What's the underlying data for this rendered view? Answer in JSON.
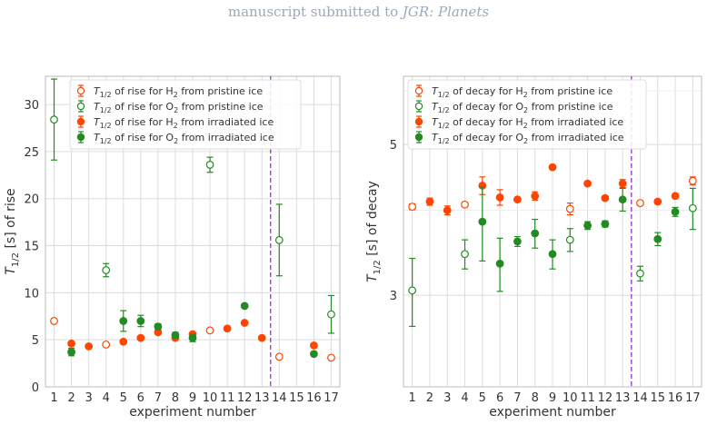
{
  "header": {
    "prefix": "manuscript submitted to",
    "journal": "JGR: Planets"
  },
  "colors": {
    "h2": "#ff4500",
    "o2": "#228b22",
    "separator": "#9932cc",
    "grid": "#dcdcdc"
  },
  "chart_data": [
    {
      "type": "scatter",
      "xlabel": "experiment number",
      "ylabel": "T_{1/2} [s] of rise",
      "ylabel_parts": {
        "prefix": "T",
        "sub": "1/2",
        "suffix": " [s] of rise"
      },
      "x_ticks": [
        1,
        2,
        3,
        4,
        5,
        6,
        7,
        8,
        9,
        10,
        11,
        12,
        13,
        14,
        15,
        16,
        17
      ],
      "xlim": [
        0.5,
        17.5
      ],
      "y_ticks": [
        0,
        5,
        10,
        15,
        20,
        25,
        30
      ],
      "ylim": [
        0,
        33
      ],
      "y_scale": "linear",
      "grid": true,
      "legend_position": "top-right",
      "vline_x": 13.5,
      "series": [
        {
          "name": "T1/2 of rise for H2 from pristine ice",
          "legend": {
            "t": "T",
            "sub1": "1/2",
            "mid": " of rise for H",
            "sub2": "2",
            "end": " from pristine ice"
          },
          "color": "#ff4500",
          "filled": false,
          "points": [
            {
              "x": 1,
              "y": 7.0,
              "err": 0.1
            },
            {
              "x": 4,
              "y": 4.5,
              "err": 0.1
            },
            {
              "x": 10,
              "y": 6.0,
              "err": 0.1
            },
            {
              "x": 14,
              "y": 3.2,
              "err": 0.1
            },
            {
              "x": 17,
              "y": 3.1,
              "err": 0.1
            }
          ]
        },
        {
          "name": "T1/2 of rise for O2 from pristine ice",
          "legend": {
            "t": "T",
            "sub1": "1/2",
            "mid": " of rise for O",
            "sub2": "2",
            "end": " from pristine ice"
          },
          "color": "#228b22",
          "filled": false,
          "points": [
            {
              "x": 1,
              "y": 28.4,
              "err": 4.3
            },
            {
              "x": 4,
              "y": 12.4,
              "err": 0.7
            },
            {
              "x": 10,
              "y": 23.6,
              "err": 0.8
            },
            {
              "x": 14,
              "y": 15.6,
              "err": 3.8
            },
            {
              "x": 17,
              "y": 7.7,
              "err": 2.0
            }
          ]
        },
        {
          "name": "T1/2 of rise for H2 from irradiated ice",
          "legend": {
            "t": "T",
            "sub1": "1/2",
            "mid": " of rise for H",
            "sub2": "2",
            "end": " from irradiated ice"
          },
          "color": "#ff4500",
          "filled": true,
          "points": [
            {
              "x": 2,
              "y": 4.6,
              "err": 0.1
            },
            {
              "x": 3,
              "y": 4.3,
              "err": 0.1
            },
            {
              "x": 5,
              "y": 4.8,
              "err": 0.1
            },
            {
              "x": 6,
              "y": 5.2,
              "err": 0.1
            },
            {
              "x": 7,
              "y": 5.8,
              "err": 0.1
            },
            {
              "x": 8,
              "y": 5.2,
              "err": 0.1
            },
            {
              "x": 9,
              "y": 5.6,
              "err": 0.1
            },
            {
              "x": 11,
              "y": 6.2,
              "err": 0.1
            },
            {
              "x": 12,
              "y": 6.8,
              "err": 0.1
            },
            {
              "x": 13,
              "y": 5.2,
              "err": 0.1
            },
            {
              "x": 16,
              "y": 4.4,
              "err": 0.1
            }
          ]
        },
        {
          "name": "T1/2 of rise for O2 from irradiated ice",
          "legend": {
            "t": "T",
            "sub1": "1/2",
            "mid": " of rise for O",
            "sub2": "2",
            "end": " from irradiated ice"
          },
          "color": "#228b22",
          "filled": true,
          "points": [
            {
              "x": 2,
              "y": 3.7,
              "err": 0.4
            },
            {
              "x": 5,
              "y": 7.0,
              "err": 1.1
            },
            {
              "x": 6,
              "y": 7.0,
              "err": 0.6
            },
            {
              "x": 7,
              "y": 6.4,
              "err": 0.3
            },
            {
              "x": 8,
              "y": 5.5,
              "err": 0.3
            },
            {
              "x": 9,
              "y": 5.2,
              "err": 0.4
            },
            {
              "x": 12,
              "y": 8.6,
              "err": 0.2
            },
            {
              "x": 16,
              "y": 3.5,
              "err": 0.2
            }
          ]
        }
      ]
    },
    {
      "type": "scatter",
      "xlabel": "experiment number",
      "ylabel": "T_{1/2} [s] of decay",
      "ylabel_parts": {
        "prefix": "T",
        "sub": "1/2",
        "suffix": " [s] of decay"
      },
      "x_ticks": [
        1,
        2,
        3,
        4,
        5,
        6,
        7,
        8,
        9,
        10,
        11,
        12,
        13,
        14,
        15,
        16,
        17
      ],
      "xlim": [
        0.5,
        17.5
      ],
      "y_ticks": [
        3,
        5
      ],
      "ylim": [
        2.2,
        6.3
      ],
      "y_scale": "log",
      "grid": true,
      "legend_position": "top-left",
      "vline_x": 13.5,
      "series": [
        {
          "name": "T1/2 of decay for H2 from pristine ice",
          "legend": {
            "t": "T",
            "sub1": "1/2",
            "mid": " of decay for H",
            "sub2": "2",
            "end": " from pristine ice"
          },
          "color": "#ff4500",
          "filled": false,
          "points": [
            {
              "x": 1,
              "y": 4.05,
              "err": 0.04
            },
            {
              "x": 4,
              "y": 4.08,
              "err": 0.03
            },
            {
              "x": 10,
              "y": 4.02,
              "err": 0.08
            },
            {
              "x": 14,
              "y": 4.1,
              "err": 0.03
            },
            {
              "x": 17,
              "y": 4.42,
              "err": 0.06
            }
          ]
        },
        {
          "name": "T1/2 of decay for O2 from pristine ice",
          "legend": {
            "t": "T",
            "sub1": "1/2",
            "mid": " of decay for O",
            "sub2": "2",
            "end": " from pristine ice"
          },
          "color": "#228b22",
          "filled": false,
          "points": [
            {
              "x": 1,
              "y": 3.05,
              "err": 0.35
            },
            {
              "x": 4,
              "y": 3.45,
              "err": 0.17
            },
            {
              "x": 10,
              "y": 3.62,
              "err": 0.14
            },
            {
              "x": 14,
              "y": 3.23,
              "err": 0.08
            },
            {
              "x": 17,
              "y": 4.03,
              "err": 0.28
            }
          ]
        },
        {
          "name": "T1/2 of decay for H2 from irradiated ice",
          "legend": {
            "t": "T",
            "sub1": "1/2",
            "mid": " of decay for H",
            "sub2": "2",
            "end": " from irradiated ice"
          },
          "color": "#ff4500",
          "filled": true,
          "points": [
            {
              "x": 2,
              "y": 4.12,
              "err": 0.05
            },
            {
              "x": 3,
              "y": 4.0,
              "err": 0.06
            },
            {
              "x": 5,
              "y": 4.35,
              "err": 0.13
            },
            {
              "x": 6,
              "y": 4.18,
              "err": 0.11
            },
            {
              "x": 7,
              "y": 4.15,
              "err": 0.03
            },
            {
              "x": 8,
              "y": 4.2,
              "err": 0.06
            },
            {
              "x": 9,
              "y": 4.63,
              "err": 0.02
            },
            {
              "x": 11,
              "y": 4.38,
              "err": 0.02
            },
            {
              "x": 12,
              "y": 4.17,
              "err": 0.03
            },
            {
              "x": 13,
              "y": 4.38,
              "err": 0.06
            },
            {
              "x": 15,
              "y": 4.12,
              "err": 0.03
            },
            {
              "x": 16,
              "y": 4.2,
              "err": 0.03
            }
          ]
        },
        {
          "name": "T1/2 of decay for O2 from irradiated ice",
          "legend": {
            "t": "T",
            "sub1": "1/2",
            "mid": " of decay for O",
            "sub2": "2",
            "end": " from irradiated ice"
          },
          "color": "#228b22",
          "filled": true,
          "points": [
            {
              "x": 5,
              "y": 3.85,
              "err": 0.48
            },
            {
              "x": 6,
              "y": 3.34,
              "err": 0.3
            },
            {
              "x": 7,
              "y": 3.6,
              "err": 0.06
            },
            {
              "x": 8,
              "y": 3.7,
              "err": 0.18
            },
            {
              "x": 9,
              "y": 3.45,
              "err": 0.17
            },
            {
              "x": 11,
              "y": 3.8,
              "err": 0.05
            },
            {
              "x": 12,
              "y": 3.82,
              "err": 0.04
            },
            {
              "x": 13,
              "y": 4.15,
              "err": 0.16
            },
            {
              "x": 15,
              "y": 3.63,
              "err": 0.08
            },
            {
              "x": 16,
              "y": 3.98,
              "err": 0.06
            }
          ]
        }
      ]
    }
  ]
}
